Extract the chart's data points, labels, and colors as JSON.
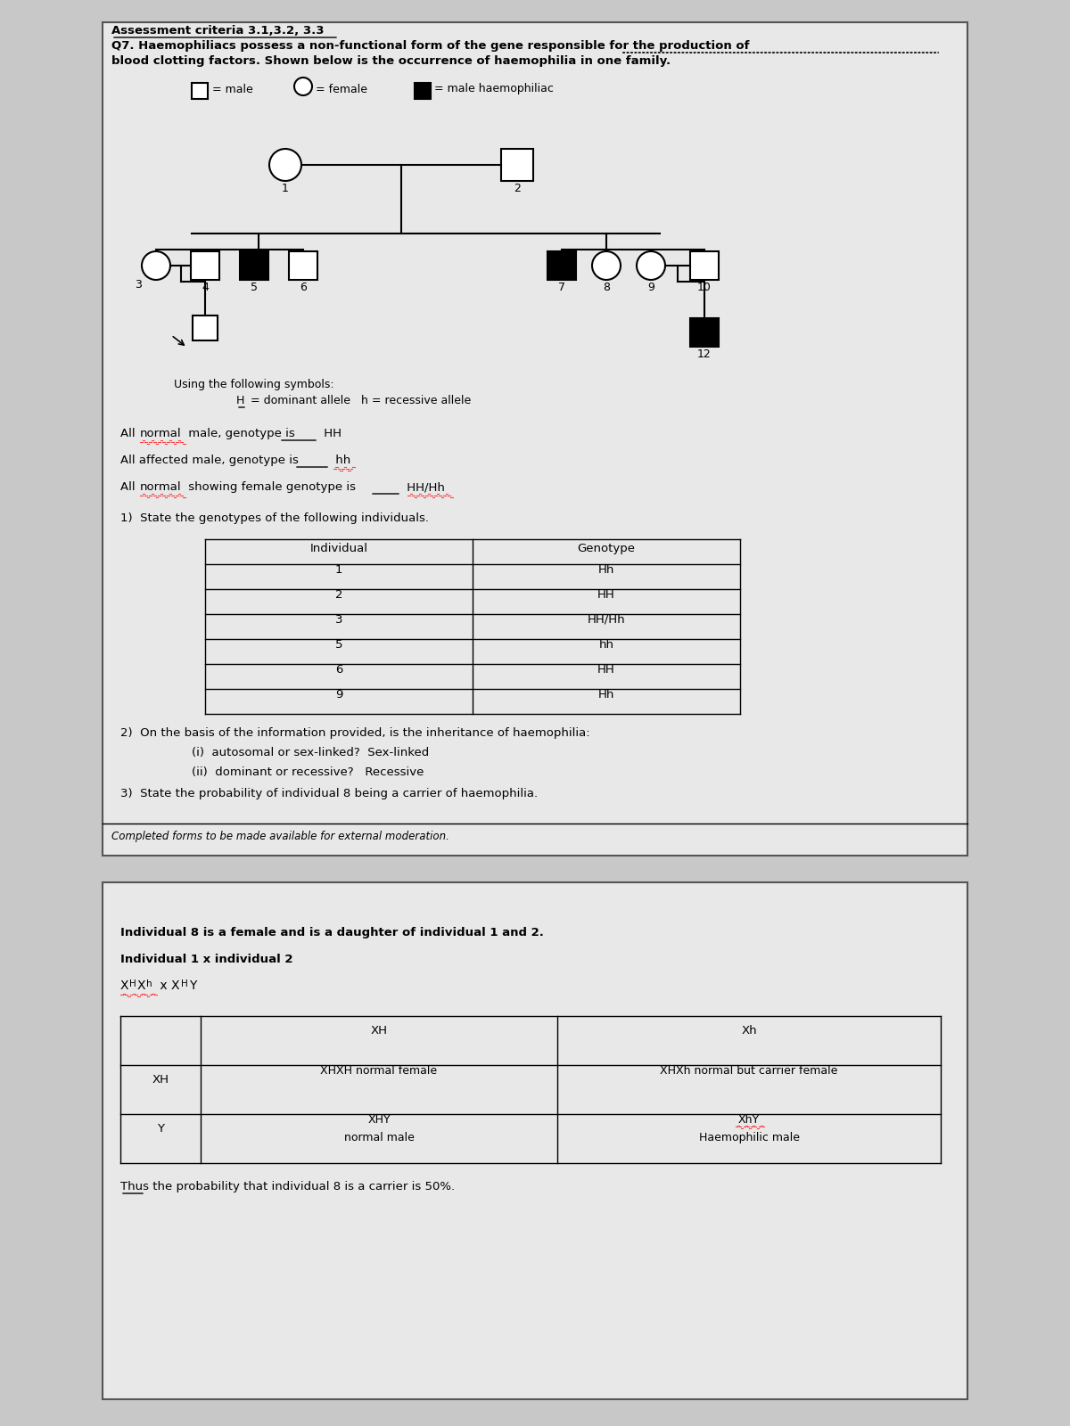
{
  "bg_color": "#c8c8c8",
  "panel1_bg": "#e8e8e8",
  "panel2_bg": "#e8e8e8",
  "title_line1": "Assessment criteria 3.1,3.2, 3.3",
  "title_line2": "Q7. Haemophiliacs possess a non-functional form of the gene responsible for the production of",
  "title_line3": "blood clotting factors. Shown below is the occurrence of haemophilia in one family.",
  "legend_male": "= male",
  "legend_female": "= female",
  "legend_haemo": "= male haemophiliac",
  "symbols_intro": "Using the following symbols:",
  "q1_text": "1)  State the genotypes of the following individuals.",
  "table1_rows": [
    [
      "1",
      "Hh"
    ],
    [
      "2",
      "HH"
    ],
    [
      "3",
      "HH/Hh"
    ],
    [
      "5",
      "hh"
    ],
    [
      "6",
      "HH"
    ],
    [
      "9",
      "Hh"
    ]
  ],
  "q2_text": "2)  On the basis of the information provided, is the inheritance of haemophilia:",
  "q2i_text": "(i)  autosomal or sex-linked?  Sex-linked",
  "q2ii_text": "(ii)  dominant or recessive?   Recessive",
  "q3_text": "3)  State the probability of individual 8 being a carrier of haemophilia.",
  "footer_text": "Completed forms to be made available for external moderation.",
  "panel2_line1": "Individual 8 is a female and is a daughter of individual 1 and 2.",
  "panel2_line2": "Individual 1 x individual 2",
  "conclusion": "Thus the probability that individual 8 is a carrier is 50%."
}
